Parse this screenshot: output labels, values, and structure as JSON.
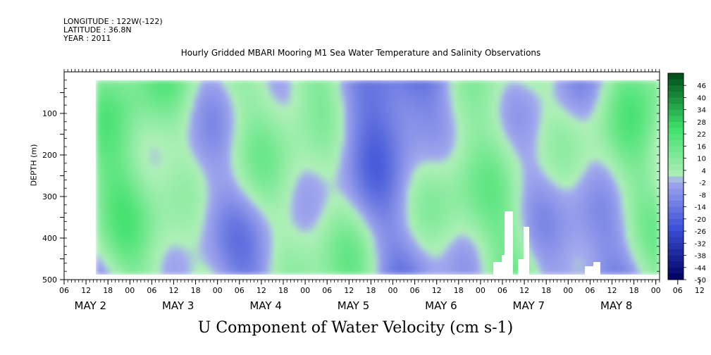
{
  "header": {
    "longitude": "LONGITUDE : 122W(-122)",
    "latitude": "LATITUDE : 36.8N",
    "year": "YEAR : 2011",
    "title": "Hourly Gridded MBARI Mooring M1 Sea Water Temperature and Salinity Observations"
  },
  "footer": {
    "title": "U Component of Water Velocity (cm s-1)"
  },
  "chart_data": {
    "type": "heatmap",
    "title": "Hourly Gridded MBARI Mooring M1 Sea Water Temperature and Salinity Observations",
    "subtitle": "U Component of Water Velocity (cm s-1)",
    "ylabel": "DEPTH (m)",
    "ylim": [
      500,
      0
    ],
    "y_ticks": [
      100,
      200,
      300,
      400,
      500
    ],
    "hour_ticks": [
      "06",
      "12",
      "18",
      "00",
      "06",
      "12",
      "18",
      "00",
      "06",
      "12",
      "18",
      "00",
      "06",
      "12",
      "18",
      "00",
      "06",
      "12",
      "18",
      "00",
      "06",
      "12",
      "18",
      "00",
      "06",
      "12",
      "18",
      "00",
      "06",
      "12",
      "18"
    ],
    "day_labels": [
      "MAY 2",
      "MAY 3",
      "MAY 4",
      "MAY 5",
      "MAY 6",
      "MAY 7",
      "MAY 8"
    ],
    "colorbar_labels": [
      "46",
      "40",
      "34",
      "28",
      "22",
      "16",
      "10",
      "4",
      "-2",
      "-8",
      "-14",
      "-20",
      "-26",
      "-32",
      "-38",
      "-44",
      "-50"
    ],
    "colorbar_range": [
      -50,
      52
    ],
    "colorbar_step": 3,
    "data_depth_range": [
      20,
      488
    ],
    "data_start_hour_index": 1.45,
    "colors": {
      "deep_negative": "#000060",
      "negative": "#3a4fd6",
      "near_zero_neg": "#a4aaee",
      "near_zero_pos": "#b0f0b8",
      "positive": "#3ce06a",
      "deep_positive": "#004a18"
    }
  }
}
